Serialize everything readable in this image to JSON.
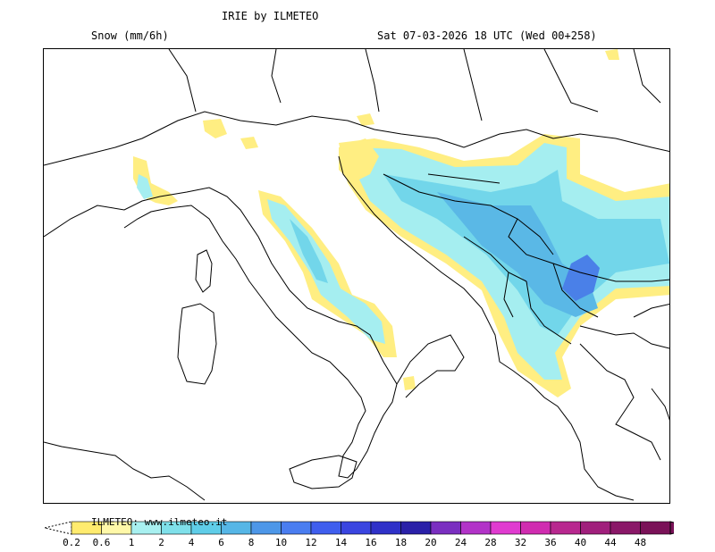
{
  "header": {
    "title": "IRIE by ILMETEO",
    "field": "Snow (mm/6h)",
    "valid": "Sat 07-03-2026 18 UTC (Wed 00+258)"
  },
  "legend": {
    "credit": "ILMETEO: www.ilmeteo.it",
    "ticks": [
      "0.2",
      "0.6",
      "1",
      "2",
      "4",
      "6",
      "8",
      "10",
      "12",
      "14",
      "16",
      "18",
      "20",
      "24",
      "28",
      "32",
      "36",
      "40",
      "44",
      "48"
    ],
    "colors": [
      "#ffeb6e",
      "#fff8a8",
      "#a8f0f0",
      "#7fe0ea",
      "#5fcde8",
      "#56b6e6",
      "#4d97e8",
      "#4a7df0",
      "#3f5eee",
      "#3a45e0",
      "#2f31c8",
      "#2a20a8",
      "#7a2fc0",
      "#b233c8",
      "#e03bd0",
      "#d02cb0",
      "#b8288f",
      "#a01f7c",
      "#8a1868",
      "#7a1258"
    ],
    "over_color": "#7a1258"
  },
  "map": {
    "snow_levels": [
      "0.2",
      "1",
      "4",
      "6",
      "8"
    ],
    "snow_colors": [
      "#ffee82",
      "#a5eef0",
      "#72d6ea",
      "#5ab8e6",
      "#4a80e8"
    ]
  }
}
